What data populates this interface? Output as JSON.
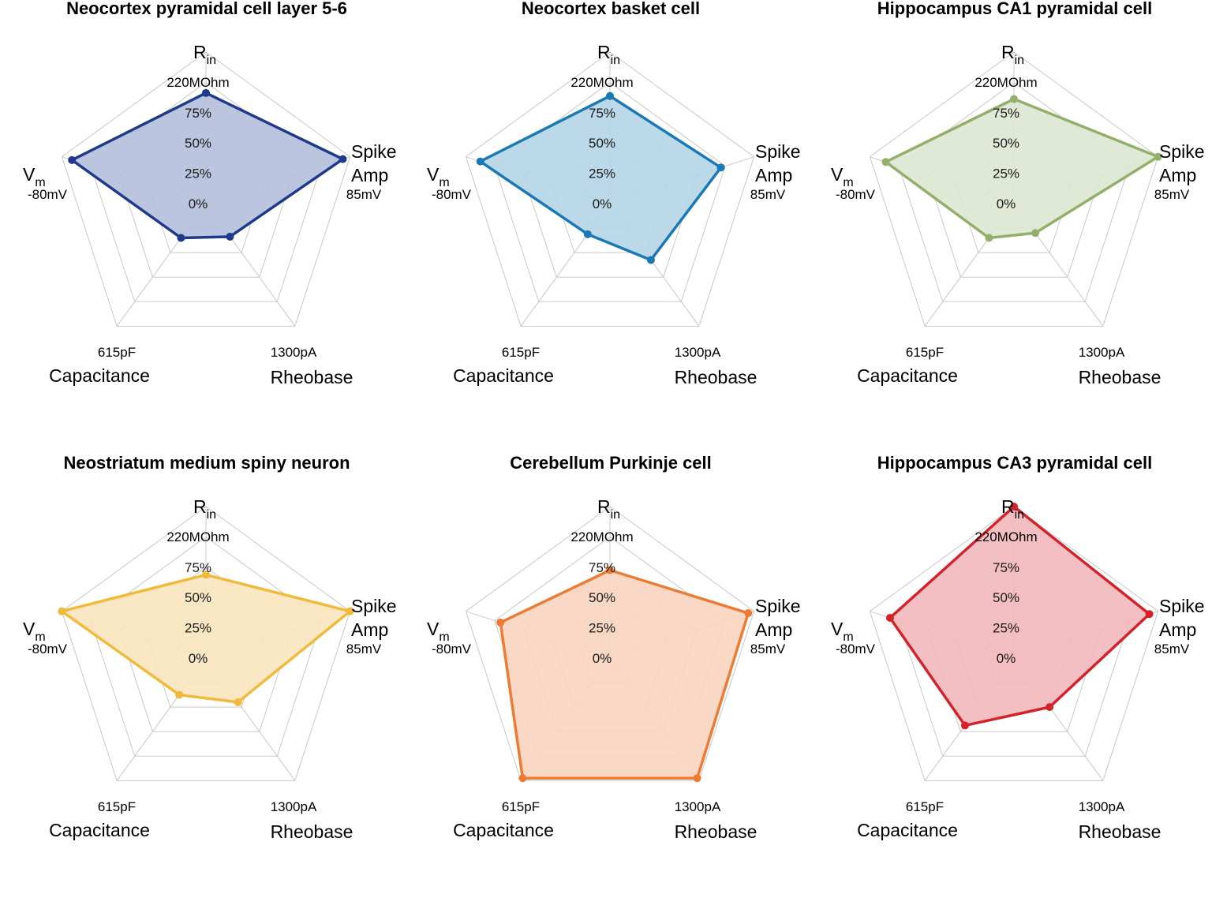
{
  "chart_data": [
    {
      "type": "radar",
      "title": "Neocortex pyramidal cell layer 5-6",
      "color": "#1f3a8a",
      "fill": "#b5bfdb",
      "axes": [
        {
          "name": "R",
          "sub": "in",
          "max": "220MOhm"
        },
        {
          "name": "Spike Amp",
          "max": "85mV"
        },
        {
          "name": "Rheobase",
          "max": "1300pA"
        },
        {
          "name": "Capacitance",
          "max": "615pF"
        },
        {
          "name": "V",
          "sub": "m",
          "max": "-80mV"
        }
      ],
      "ticks": [
        "0%",
        "25%",
        "50%",
        "75%"
      ],
      "values": [
        0.73,
        0.95,
        0.27,
        0.28,
        0.93
      ]
    },
    {
      "type": "radar",
      "title": "Neocortex basket cell",
      "color": "#1a78b4",
      "fill": "#b4d5e6",
      "axes": [
        {
          "name": "R",
          "sub": "in",
          "max": "220MOhm"
        },
        {
          "name": "Spike Amp",
          "max": "85mV"
        },
        {
          "name": "Rheobase",
          "max": "1300pA"
        },
        {
          "name": "Capacitance",
          "max": "615pF"
        },
        {
          "name": "V",
          "sub": "m",
          "max": "-80mV"
        }
      ],
      "ticks": [
        "0%",
        "25%",
        "50%",
        "75%"
      ],
      "values": [
        0.71,
        0.77,
        0.46,
        0.25,
        0.9
      ]
    },
    {
      "type": "radar",
      "title": "Hippocampus CA1 pyramidal cell",
      "color": "#93b06a",
      "fill": "#dde7d0",
      "axes": [
        {
          "name": "R",
          "sub": "in",
          "max": "220MOhm"
        },
        {
          "name": "Spike Amp",
          "max": "85mV"
        },
        {
          "name": "Rheobase",
          "max": "1300pA"
        },
        {
          "name": "Capacitance",
          "max": "615pF"
        },
        {
          "name": "V",
          "sub": "m",
          "max": "-80mV"
        }
      ],
      "ticks": [
        "0%",
        "25%",
        "50%",
        "75%"
      ],
      "values": [
        0.69,
        1.0,
        0.24,
        0.28,
        0.89
      ]
    },
    {
      "type": "radar",
      "title": "Neostriatum medium spiny neuron",
      "color": "#f0ba3d",
      "fill": "#fae6bf",
      "axes": [
        {
          "name": "R",
          "sub": "in",
          "max": "220MOhm"
        },
        {
          "name": "Spike Amp",
          "max": "85mV"
        },
        {
          "name": "Rheobase",
          "max": "1300pA"
        },
        {
          "name": "Capacitance",
          "max": "615pF"
        },
        {
          "name": "V",
          "sub": "m",
          "max": "-80mV"
        }
      ],
      "ticks": [
        "0%",
        "25%",
        "50%",
        "75%"
      ],
      "values": [
        0.55,
        1.0,
        0.36,
        0.3,
        1.0
      ]
    },
    {
      "type": "radar",
      "title": "Cerebellum Purkinje cell",
      "color": "#ec7b35",
      "fill": "#f8d4bf",
      "axes": [
        {
          "name": "R",
          "sub": "in",
          "max": "220MOhm"
        },
        {
          "name": "Spike Amp",
          "max": "85mV"
        },
        {
          "name": "Rheobase",
          "max": "1300pA"
        },
        {
          "name": "Capacitance",
          "max": "615pF"
        },
        {
          "name": "V",
          "sub": "m",
          "max": "-80mV"
        }
      ],
      "ticks": [
        "0%",
        "25%",
        "50%",
        "75%"
      ],
      "values": [
        0.58,
        0.96,
        0.98,
        0.98,
        0.76
      ]
    },
    {
      "type": "radar",
      "title": "Hippocampus CA3 pyramidal cell",
      "color": "#d2232a",
      "fill": "#f2b8bb",
      "axes": [
        {
          "name": "R",
          "sub": "in",
          "max": "220MOhm"
        },
        {
          "name": "Spike Amp",
          "max": "85mV"
        },
        {
          "name": "Rheobase",
          "max": "1300pA"
        },
        {
          "name": "Capacitance",
          "max": "615pF"
        },
        {
          "name": "V",
          "sub": "m",
          "max": "-80mV"
        }
      ],
      "ticks": [
        "0%",
        "25%",
        "50%",
        "75%"
      ],
      "values": [
        1.0,
        0.94,
        0.4,
        0.55,
        0.86
      ]
    }
  ]
}
